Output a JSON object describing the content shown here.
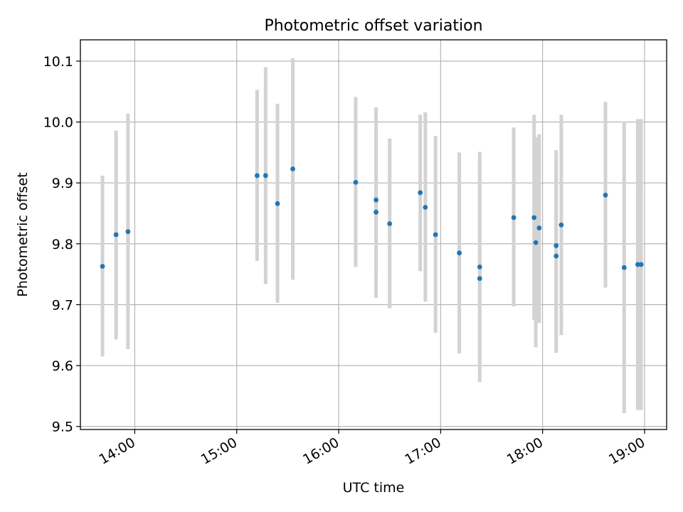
{
  "chart_data": {
    "type": "scatter",
    "title": "Photometric offset variation",
    "xlabel": "UTC time",
    "ylabel": "Photometric offset",
    "xlim": [
      "13:28",
      "19:13"
    ],
    "ylim": [
      9.495,
      10.135
    ],
    "x_ticks": [
      "14:00",
      "15:00",
      "16:00",
      "17:00",
      "18:00",
      "19:00"
    ],
    "y_ticks": [
      "9.5",
      "9.6",
      "9.7",
      "9.8",
      "9.9",
      "10.0",
      "10.1"
    ],
    "grid": true,
    "point_color": "#1f77b4",
    "errorbar_color": "#d3d3d3",
    "points": [
      {
        "time": "13:41",
        "value": 9.763,
        "lo": 9.615,
        "hi": 9.912
      },
      {
        "time": "13:49",
        "value": 9.815,
        "lo": 9.643,
        "hi": 9.986
      },
      {
        "time": "13:56",
        "value": 9.82,
        "lo": 9.627,
        "hi": 10.014
      },
      {
        "time": "15:12",
        "value": 9.912,
        "lo": 9.772,
        "hi": 10.053
      },
      {
        "time": "15:17",
        "value": 9.912,
        "lo": 9.734,
        "hi": 10.09
      },
      {
        "time": "15:24",
        "value": 9.866,
        "lo": 9.703,
        "hi": 10.03
      },
      {
        "time": "15:33",
        "value": 9.923,
        "lo": 9.741,
        "hi": 10.105
      },
      {
        "time": "16:10",
        "value": 9.901,
        "lo": 9.762,
        "hi": 10.041
      },
      {
        "time": "16:22",
        "value": 9.872,
        "lo": 9.75,
        "hi": 9.99
      },
      {
        "time": "16:22",
        "value": 9.852,
        "lo": 9.711,
        "hi": 10.024
      },
      {
        "time": "16:30",
        "value": 9.833,
        "lo": 9.694,
        "hi": 9.973
      },
      {
        "time": "16:48",
        "value": 9.884,
        "lo": 9.755,
        "hi": 10.012
      },
      {
        "time": "16:51",
        "value": 9.86,
        "lo": 9.705,
        "hi": 10.016
      },
      {
        "time": "16:57",
        "value": 9.815,
        "lo": 9.654,
        "hi": 9.977
      },
      {
        "time": "17:11",
        "value": 9.785,
        "lo": 9.62,
        "hi": 9.95
      },
      {
        "time": "17:23",
        "value": 9.762,
        "lo": 9.588,
        "hi": 9.937
      },
      {
        "time": "17:23",
        "value": 9.743,
        "lo": 9.573,
        "hi": 9.951
      },
      {
        "time": "17:43",
        "value": 9.843,
        "lo": 9.697,
        "hi": 9.991
      },
      {
        "time": "17:55",
        "value": 9.843,
        "lo": 9.675,
        "hi": 10.012
      },
      {
        "time": "17:56",
        "value": 9.802,
        "lo": 9.63,
        "hi": 9.975
      },
      {
        "time": "17:58",
        "value": 9.826,
        "lo": 9.67,
        "hi": 9.98
      },
      {
        "time": "18:08",
        "value": 9.78,
        "lo": 9.621,
        "hi": 9.94
      },
      {
        "time": "18:08",
        "value": 9.797,
        "lo": 9.638,
        "hi": 9.954
      },
      {
        "time": "18:11",
        "value": 9.831,
        "lo": 9.65,
        "hi": 10.012
      },
      {
        "time": "18:37",
        "value": 9.88,
        "lo": 9.728,
        "hi": 10.033
      },
      {
        "time": "18:48",
        "value": 9.761,
        "lo": 9.522,
        "hi": 10.001
      },
      {
        "time": "18:56",
        "value": 9.766,
        "lo": 9.527,
        "hi": 10.005
      },
      {
        "time": "18:58",
        "value": 9.766,
        "lo": 9.527,
        "hi": 10.005
      }
    ]
  }
}
